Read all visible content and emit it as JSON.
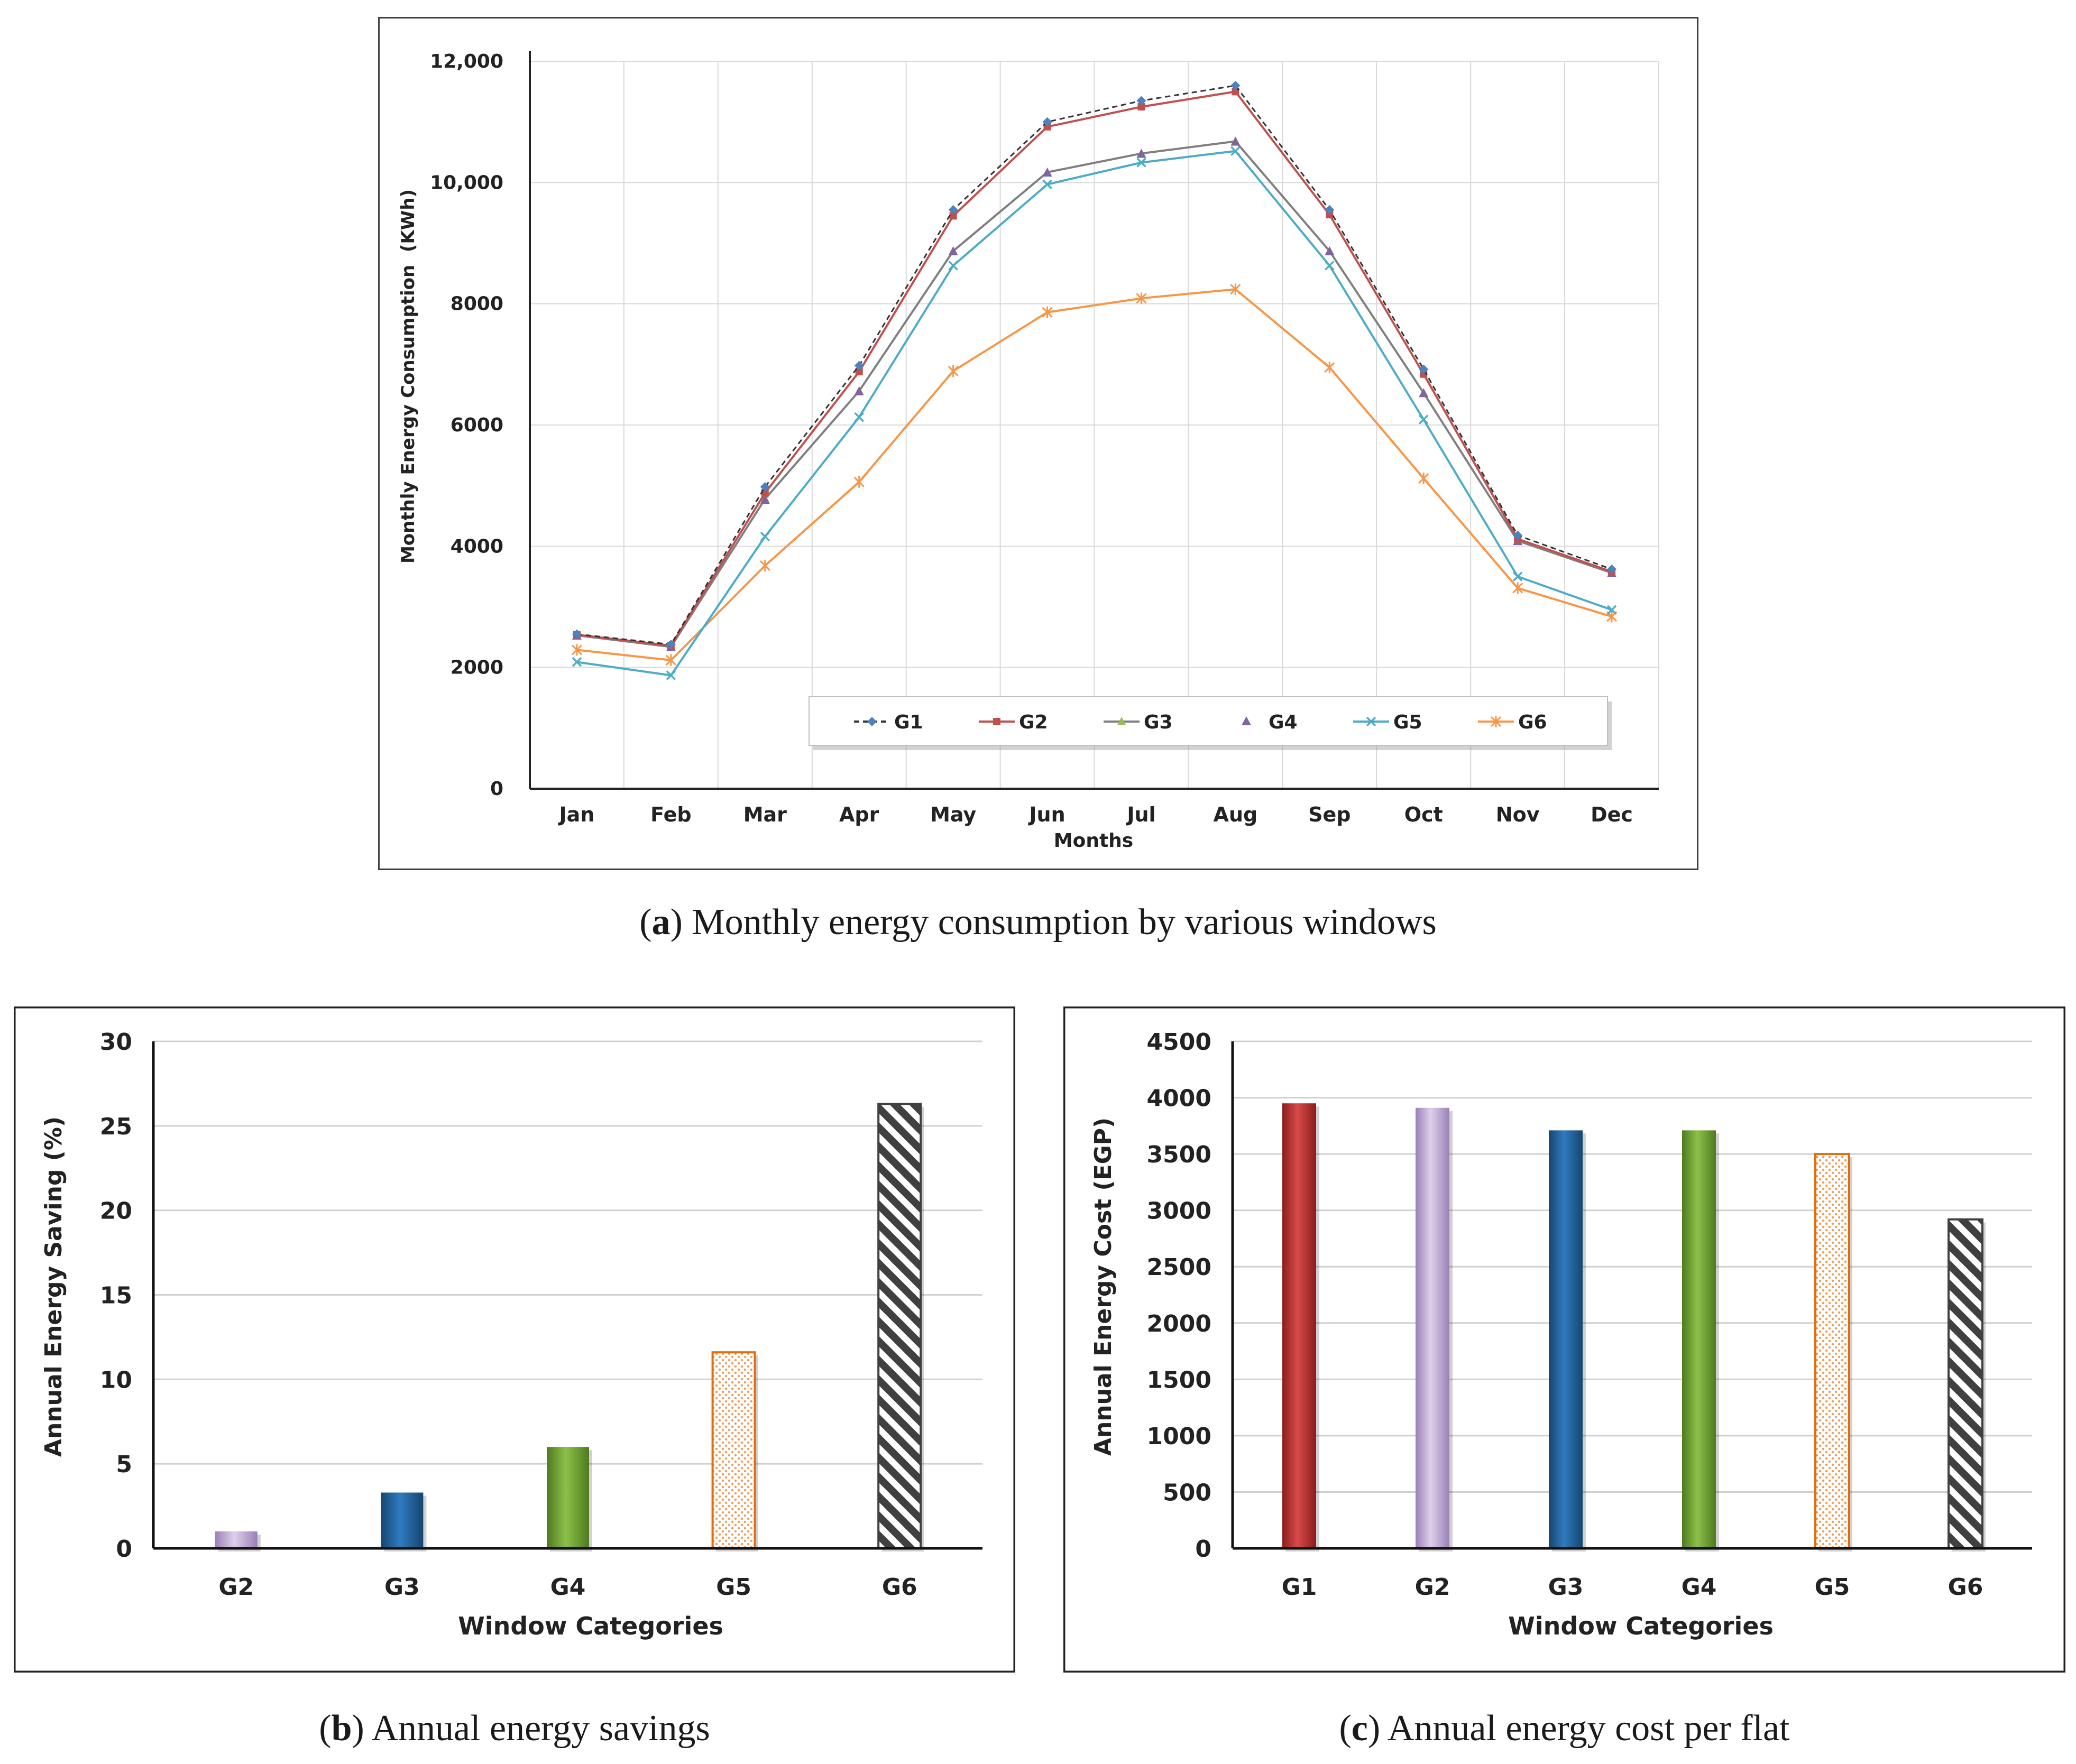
{
  "chart_data": [
    {
      "id": "a",
      "type": "line",
      "title": "",
      "xlabel": "Months",
      "ylabel": "Monthly Energy Consumption  (KWh)",
      "ylim": [
        0,
        12000
      ],
      "yticks": [
        0,
        2000,
        4000,
        6000,
        8000,
        10000,
        12000
      ],
      "ytick_labels": [
        "0",
        "2000",
        "4000",
        "6000",
        "8000",
        "10,000",
        "12,000"
      ],
      "categories": [
        "Jan",
        "Feb",
        "Mar",
        "Apr",
        "May",
        "Jun",
        "Jul",
        "Aug",
        "Sep",
        "Oct",
        "Nov",
        "Dec"
      ],
      "grid": true,
      "legend_position": "bottom-center",
      "series": [
        {
          "name": "G1",
          "color": "#4f81bd",
          "marker": "diamond",
          "dash": true,
          "values": [
            2550,
            2380,
            4980,
            6980,
            9550,
            11000,
            11350,
            11600,
            9550,
            6920,
            4180,
            3620
          ]
        },
        {
          "name": "G2",
          "color": "#c0504d",
          "marker": "square",
          "dash": false,
          "values": [
            2540,
            2360,
            4880,
            6880,
            9450,
            10920,
            11250,
            11500,
            9470,
            6840,
            4120,
            3580
          ]
        },
        {
          "name": "G3",
          "color": "#7f7f7f",
          "marker": "triangle-olive",
          "dash": false,
          "values": [
            2530,
            2340,
            4780,
            6560,
            8870,
            10170,
            10480,
            10680,
            8870,
            6530,
            4090,
            3560
          ]
        },
        {
          "name": "G4",
          "color": "#8064a2",
          "marker": "triangle",
          "dash": false,
          "markers_only": true,
          "values": [
            2520,
            2330,
            4760,
            6550,
            8860,
            10160,
            10470,
            10670,
            8860,
            6520,
            4080,
            3550
          ]
        },
        {
          "name": "G5",
          "color": "#4bacc6",
          "marker": "x",
          "dash": false,
          "values": [
            2090,
            1870,
            4160,
            6130,
            8630,
            9970,
            10330,
            10520,
            8630,
            6090,
            3500,
            2950
          ]
        },
        {
          "name": "G6",
          "color": "#f79646",
          "marker": "star",
          "dash": false,
          "values": [
            2290,
            2120,
            3680,
            5060,
            6890,
            7860,
            8090,
            8240,
            6950,
            5120,
            3310,
            2840
          ]
        }
      ]
    },
    {
      "id": "b",
      "type": "bar",
      "title": "",
      "xlabel": "Window Categories",
      "ylabel": "Annual Energy Saving (%)",
      "ylim": [
        0,
        30
      ],
      "yticks": [
        0,
        5,
        10,
        15,
        20,
        25,
        30
      ],
      "categories": [
        "G2",
        "G3",
        "G4",
        "G5",
        "G6"
      ],
      "values": [
        1.0,
        3.3,
        6.0,
        11.6,
        26.3
      ],
      "colors": [
        "#b9a3d0",
        "#1f5e96",
        "#6a9a2e",
        "#e46c0a",
        "#404040"
      ],
      "patterns": [
        "solid",
        "solid",
        "solid",
        "dots",
        "hatch"
      ]
    },
    {
      "id": "c",
      "type": "bar",
      "title": "",
      "xlabel": "Window Categories",
      "ylabel": "Annual Energy Cost (EGP)",
      "ylim": [
        0,
        4500
      ],
      "yticks": [
        0,
        500,
        1000,
        1500,
        2000,
        2500,
        3000,
        3500,
        4000,
        4500
      ],
      "categories": [
        "G1",
        "G2",
        "G3",
        "G4",
        "G5",
        "G6"
      ],
      "values": [
        3950,
        3910,
        3710,
        3710,
        3500,
        2920
      ],
      "colors": [
        "#b22a2a",
        "#b9a3d0",
        "#1f5e96",
        "#6a9a2e",
        "#e46c0a",
        "#404040"
      ],
      "patterns": [
        "solid",
        "solid",
        "solid",
        "solid",
        "dots",
        "hatch"
      ]
    }
  ],
  "captions": {
    "a": {
      "letter": "a",
      "text": " Monthly energy consumption by various windows"
    },
    "b": {
      "letter": "b",
      "text": " Annual energy savings"
    },
    "c": {
      "letter": "c",
      "text": " Annual energy cost per flat"
    }
  }
}
